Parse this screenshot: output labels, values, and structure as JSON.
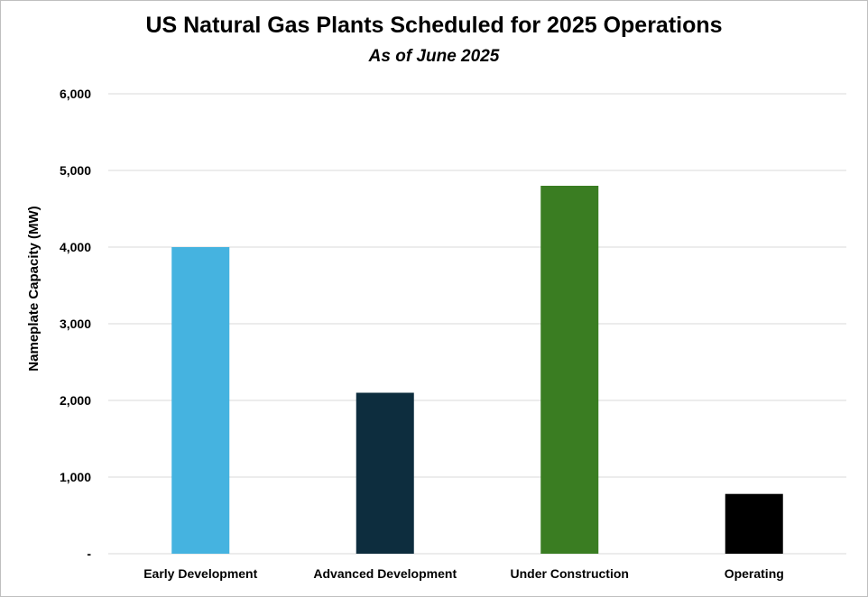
{
  "chart_data": {
    "type": "bar",
    "title": "US Natural Gas Plants Scheduled for 2025 Operations",
    "subtitle": "As of June 2025",
    "xlabel": "",
    "ylabel": "Nameplate Capacity (MW)",
    "categories": [
      "Early Development",
      "Advanced Development",
      "Under Construction",
      "Operating"
    ],
    "values": [
      4000,
      2100,
      4800,
      780
    ],
    "colors": [
      "#45b3e0",
      "#0d2d3e",
      "#3a7d22",
      "#000000"
    ],
    "ylim": [
      0,
      6000
    ],
    "yticks": [
      0,
      1000,
      2000,
      3000,
      4000,
      5000,
      6000
    ],
    "ytick_labels": [
      "-",
      "1,000",
      "2,000",
      "3,000",
      "4,000",
      "5,000",
      "6,000"
    ],
    "grid": true,
    "legend": "none"
  }
}
